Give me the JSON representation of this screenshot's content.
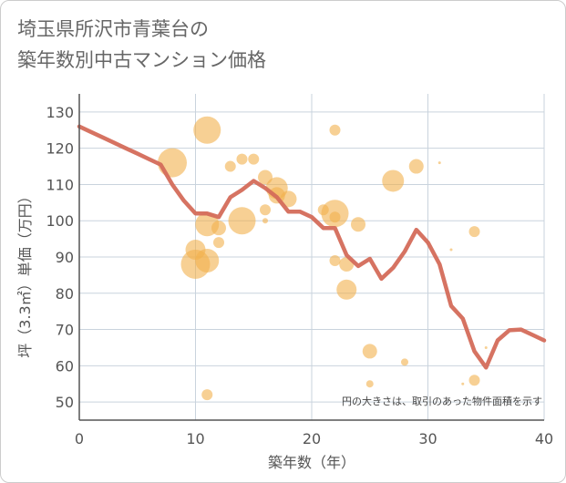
{
  "title_lines": [
    "埼玉県所沢市青葉台の",
    "築年数別中古マンション価格"
  ],
  "chart_data": {
    "type": "scatter",
    "xlabel": "築年数（年）",
    "ylabel": "坪（3.3㎡）単価（万円）",
    "xlim": [
      0,
      40
    ],
    "ylim": [
      45,
      135
    ],
    "xticks": [
      0,
      10,
      20,
      30,
      40
    ],
    "yticks": [
      50,
      60,
      70,
      80,
      90,
      100,
      110,
      120,
      130
    ],
    "grid": true,
    "note": "円の大きさは、取引のあった物件面積を示す",
    "colors": {
      "bubble": "#f2b14c",
      "line": "#d46b5a",
      "grid": "#c9d3dd",
      "axis": "#555555"
    },
    "bubbles": [
      {
        "x": 8,
        "y": 116,
        "s": 16
      },
      {
        "x": 11,
        "y": 125,
        "s": 15
      },
      {
        "x": 11,
        "y": 99,
        "s": 13
      },
      {
        "x": 10,
        "y": 92,
        "s": 11
      },
      {
        "x": 10,
        "y": 88,
        "s": 16
      },
      {
        "x": 11,
        "y": 89,
        "s": 13
      },
      {
        "x": 12,
        "y": 98,
        "s": 8
      },
      {
        "x": 12,
        "y": 94,
        "s": 6
      },
      {
        "x": 11,
        "y": 52,
        "s": 6
      },
      {
        "x": 13,
        "y": 115,
        "s": 6
      },
      {
        "x": 14,
        "y": 117,
        "s": 6
      },
      {
        "x": 15,
        "y": 117,
        "s": 6
      },
      {
        "x": 14,
        "y": 100,
        "s": 15
      },
      {
        "x": 16,
        "y": 112,
        "s": 8
      },
      {
        "x": 16,
        "y": 103,
        "s": 6
      },
      {
        "x": 16,
        "y": 100,
        "s": 3
      },
      {
        "x": 17,
        "y": 109,
        "s": 12
      },
      {
        "x": 17,
        "y": 107,
        "s": 9
      },
      {
        "x": 18,
        "y": 106,
        "s": 9
      },
      {
        "x": 21,
        "y": 103,
        "s": 6
      },
      {
        "x": 22,
        "y": 102,
        "s": 15
      },
      {
        "x": 22,
        "y": 101,
        "s": 6
      },
      {
        "x": 22,
        "y": 125,
        "s": 6
      },
      {
        "x": 22,
        "y": 89,
        "s": 6
      },
      {
        "x": 23,
        "y": 88,
        "s": 8
      },
      {
        "x": 23,
        "y": 81,
        "s": 11
      },
      {
        "x": 24,
        "y": 99,
        "s": 8
      },
      {
        "x": 25,
        "y": 64,
        "s": 8
      },
      {
        "x": 25,
        "y": 55,
        "s": 4
      },
      {
        "x": 27,
        "y": 111,
        "s": 12
      },
      {
        "x": 28,
        "y": 61,
        "s": 4
      },
      {
        "x": 29,
        "y": 115,
        "s": 8
      },
      {
        "x": 31,
        "y": 116,
        "s": 1.5
      },
      {
        "x": 32,
        "y": 92,
        "s": 1.5
      },
      {
        "x": 33,
        "y": 55,
        "s": 1.5
      },
      {
        "x": 34,
        "y": 97,
        "s": 6
      },
      {
        "x": 34,
        "y": 56,
        "s": 6
      },
      {
        "x": 35,
        "y": 65,
        "s": 1.5
      }
    ],
    "line": {
      "x": [
        0,
        1,
        2,
        3,
        4,
        5,
        6,
        7,
        8,
        9,
        10,
        11,
        12,
        13,
        14,
        15,
        16,
        17,
        18,
        19,
        20,
        21,
        22,
        23,
        24,
        25,
        26,
        27,
        28,
        29,
        30,
        31,
        32,
        33,
        34,
        35,
        36,
        37,
        38,
        39,
        40
      ],
      "y": [
        126,
        124.5,
        123,
        121.5,
        120,
        118.5,
        117,
        115.5,
        110,
        105.5,
        102,
        102,
        101,
        106.5,
        108.5,
        111,
        109,
        106.5,
        102.5,
        102.5,
        101,
        98,
        98,
        90.5,
        87.5,
        89.5,
        84,
        87,
        91.5,
        97.5,
        94,
        88,
        76.5,
        73,
        64,
        59.5,
        67,
        69.8,
        70,
        68.5,
        67
      ]
    }
  }
}
